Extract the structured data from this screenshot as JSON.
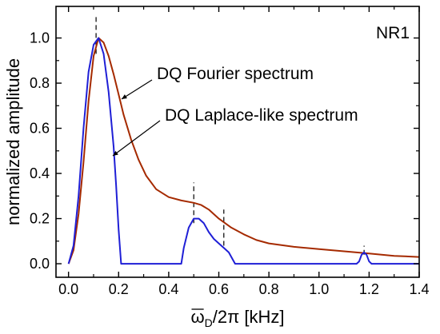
{
  "chart_data": {
    "type": "line",
    "panel_label": "NR1",
    "xlabel": "ω_D/2π [kHz]",
    "xlabel_parts": {
      "omega": "ω",
      "sub": "D",
      "rest": "/2π [kHz]"
    },
    "ylabel": "normalized amplitude",
    "xlim": [
      -0.05,
      1.4
    ],
    "ylim": [
      -0.06,
      1.14
    ],
    "xticks": [
      0.0,
      0.2,
      0.4,
      0.6,
      0.8,
      1.0,
      1.2,
      1.4
    ],
    "xtick_labels": [
      "0.0",
      "0.2",
      "0.4",
      "0.6",
      "0.8",
      "1.0",
      "1.2",
      "1.4"
    ],
    "yticks": [
      0.0,
      0.2,
      0.4,
      0.6,
      0.8,
      1.0
    ],
    "ytick_labels": [
      "0.0",
      "0.2",
      "0.4",
      "0.6",
      "0.8",
      "1.0"
    ],
    "grid": false,
    "series": [
      {
        "name": "DQ Fourier spectrum",
        "color": "#a52a00",
        "x": [
          0.0,
          0.02,
          0.04,
          0.06,
          0.08,
          0.1,
          0.12,
          0.14,
          0.16,
          0.18,
          0.2,
          0.22,
          0.25,
          0.28,
          0.31,
          0.35,
          0.4,
          0.45,
          0.5,
          0.53,
          0.56,
          0.6,
          0.65,
          0.7,
          0.75,
          0.8,
          0.9,
          1.0,
          1.1,
          1.2,
          1.3,
          1.4
        ],
        "y": [
          0.0,
          0.06,
          0.22,
          0.45,
          0.72,
          0.92,
          1.0,
          0.98,
          0.92,
          0.84,
          0.75,
          0.66,
          0.55,
          0.46,
          0.39,
          0.33,
          0.295,
          0.28,
          0.27,
          0.26,
          0.24,
          0.2,
          0.16,
          0.13,
          0.105,
          0.09,
          0.075,
          0.065,
          0.055,
          0.045,
          0.035,
          0.03
        ]
      },
      {
        "name": "DQ Laplace-like spectrum",
        "color": "#1f1fd6",
        "x": [
          0.0,
          0.02,
          0.04,
          0.06,
          0.08,
          0.1,
          0.12,
          0.14,
          0.16,
          0.18,
          0.19,
          0.2,
          0.21,
          0.3,
          0.4,
          0.45,
          0.46,
          0.48,
          0.5,
          0.52,
          0.54,
          0.56,
          0.58,
          0.6,
          0.62,
          0.64,
          0.655,
          0.665,
          0.7,
          0.8,
          0.9,
          1.0,
          1.1,
          1.15,
          1.16,
          1.17,
          1.18,
          1.19,
          1.2,
          1.21,
          1.3,
          1.4
        ],
        "y": [
          0.0,
          0.08,
          0.3,
          0.6,
          0.85,
          0.97,
          1.0,
          0.93,
          0.76,
          0.52,
          0.35,
          0.15,
          0.0,
          0.0,
          0.0,
          0.0,
          0.07,
          0.16,
          0.2,
          0.2,
          0.18,
          0.14,
          0.11,
          0.09,
          0.07,
          0.05,
          0.02,
          0.0,
          0.0,
          0.0,
          0.0,
          0.0,
          0.0,
          0.0,
          0.01,
          0.04,
          0.05,
          0.04,
          0.01,
          0.0,
          0.0,
          0.0
        ]
      }
    ],
    "markers": [
      {
        "x": 0.11,
        "y1": 0.93,
        "y2": 1.1
      },
      {
        "x": 0.5,
        "y1": 0.18,
        "y2": 0.36
      },
      {
        "x": 0.62,
        "y1": 0.08,
        "y2": 0.24
      },
      {
        "x": 1.18,
        "y1": 0.04,
        "y2": 0.08
      }
    ],
    "annotations": [
      {
        "text": "DQ Fourier spectrum",
        "series": 0
      },
      {
        "text": "DQ Laplace-like spectrum",
        "series": 1
      }
    ]
  }
}
